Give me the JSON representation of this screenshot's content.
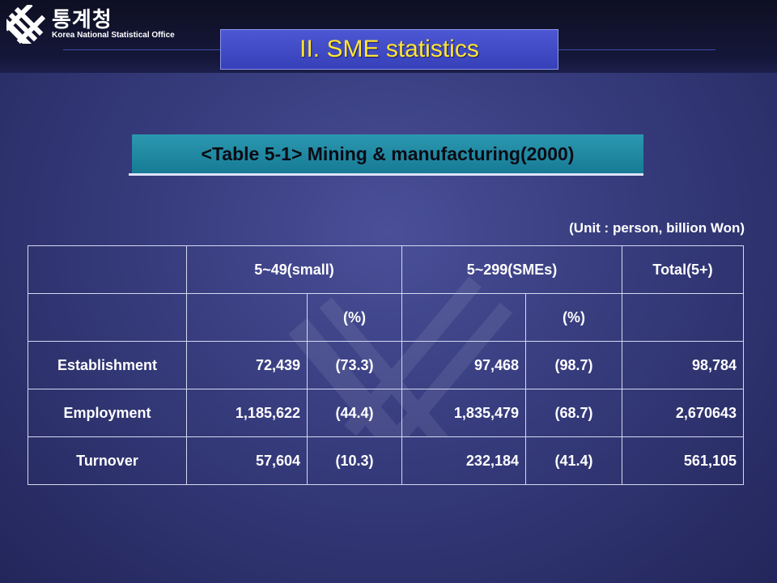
{
  "header": {
    "org_korean": "통계청",
    "org_english": "Korea National Statistical Office",
    "section_title": "II. SME statistics"
  },
  "table_caption": "<Table 5-1>  Mining & manufacturing(2000)",
  "unit_note": "(Unit : person, billion Won)",
  "table": {
    "group_headers": [
      "5~49(small)",
      "5~299(SMEs)",
      "Total(5+)"
    ],
    "sub_headers": [
      "",
      "(%)",
      "",
      "(%)",
      ""
    ],
    "rows": [
      {
        "label": "Establishment",
        "cells": [
          "72,439",
          "(73.3)",
          "97,468",
          "(98.7)",
          "98,784"
        ]
      },
      {
        "label": "Employment",
        "cells": [
          "1,185,622",
          "(44.4)",
          "1,835,479",
          "(68.7)",
          "2,670643"
        ]
      },
      {
        "label": "Turnover",
        "cells": [
          "57,604",
          "(10.3)",
          "232,184",
          "(41.4)",
          "561,105"
        ]
      }
    ]
  },
  "colors": {
    "title_text": "#ffe534",
    "title_box": "#3d47c4",
    "caption_box": "#1f88a2"
  }
}
